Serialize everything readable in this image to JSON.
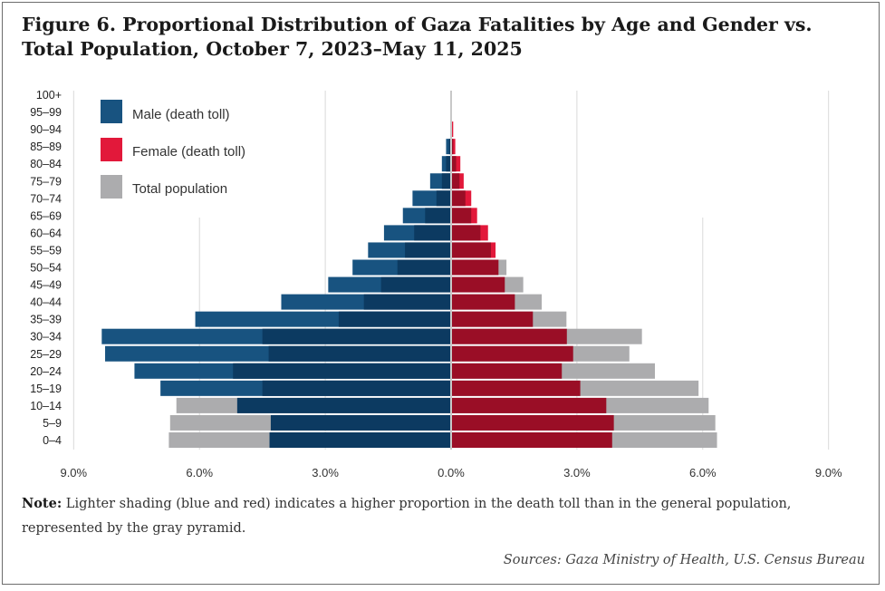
{
  "title": "Figure 6. Proportional Distribution of Gaza Fatalities by Age and Gender vs. Total Population, October 7, 2023–May 11, 2025",
  "note_label": "Note:",
  "note_text": " Lighter shading (blue and red) indicates a higher proportion in the death toll than in the general population, represented by the gray pyramid.",
  "source": "Sources: Gaza Ministry of Health, U.S. Census Bureau",
  "colors": {
    "male_dark": "#0c3a61",
    "male_light": "#185380",
    "female_dark": "#9a0e26",
    "female_light": "#e2183a",
    "population": "#acacae",
    "grid": "#d9d9d9",
    "axis": "#c8c8c8"
  },
  "chart_data": {
    "type": "bar",
    "orientation": "horizontal-pyramid",
    "categories": [
      "0–4",
      "5–9",
      "10–14",
      "15–19",
      "20–24",
      "25–29",
      "30–34",
      "35–39",
      "40–44",
      "45–49",
      "50–54",
      "55–59",
      "60–64",
      "65–69",
      "70–74",
      "75–79",
      "80–84",
      "85–89",
      "90–94",
      "95–99",
      "100+"
    ],
    "series": [
      {
        "name": "Male (death toll)",
        "side": "left",
        "values": [
          4.33,
          4.3,
          5.1,
          6.93,
          7.55,
          8.25,
          8.33,
          6.1,
          4.05,
          2.93,
          2.35,
          1.98,
          1.6,
          1.15,
          0.92,
          0.5,
          0.22,
          0.12,
          0.02,
          0,
          0
        ]
      },
      {
        "name": "Female (death toll)",
        "side": "right",
        "values": [
          3.84,
          3.88,
          3.7,
          3.08,
          2.64,
          2.91,
          2.76,
          1.95,
          1.52,
          1.28,
          1.13,
          1.06,
          0.88,
          0.62,
          0.48,
          0.3,
          0.22,
          0.1,
          0.05,
          0,
          0
        ]
      },
      {
        "name": "Total population",
        "side": "both",
        "male": [
          6.73,
          6.7,
          6.55,
          4.5,
          5.2,
          4.35,
          4.5,
          2.68,
          2.08,
          1.67,
          1.28,
          1.1,
          0.88,
          0.62,
          0.35,
          0.22,
          0.12,
          0.05,
          0.02,
          0,
          0
        ],
        "female": [
          6.34,
          6.3,
          6.14,
          5.9,
          4.86,
          4.25,
          4.55,
          2.75,
          2.16,
          1.72,
          1.32,
          0.95,
          0.7,
          0.48,
          0.34,
          0.2,
          0.12,
          0.05,
          0.02,
          0,
          0
        ]
      }
    ],
    "xlim": [
      -9,
      9
    ],
    "xticks": [
      -9,
      -6,
      -3,
      0,
      3,
      6,
      9
    ],
    "xtick_labels": [
      "9.0%",
      "6.0%",
      "3.0%",
      "0.0%",
      "3.0%",
      "6.0%",
      "9.0%"
    ],
    "grid": true,
    "legend_position": "top-left"
  }
}
